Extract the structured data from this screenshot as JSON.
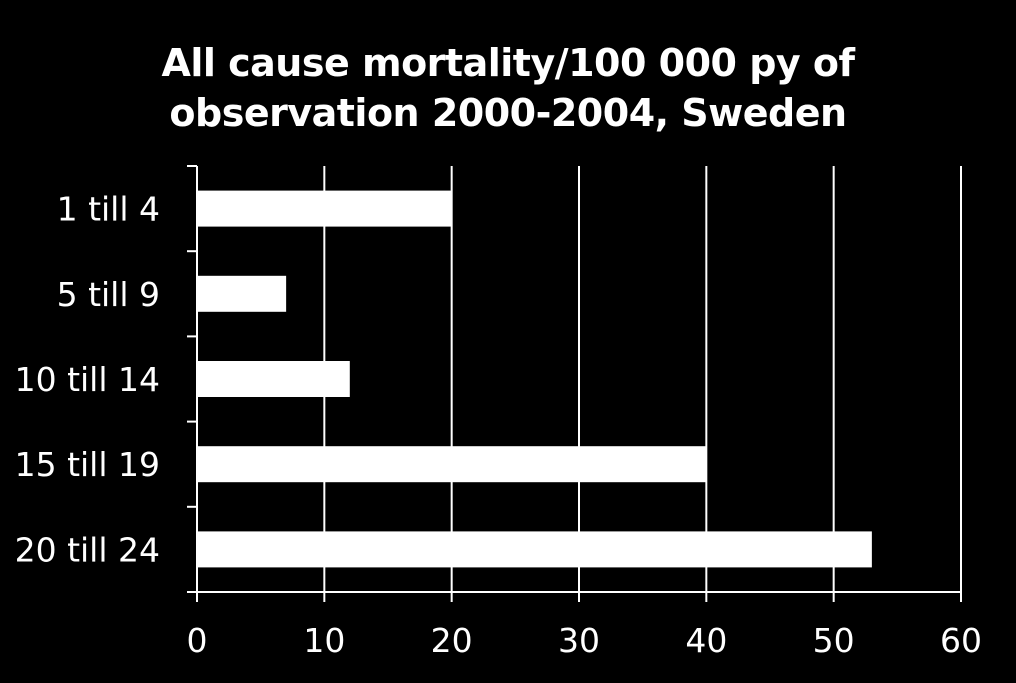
{
  "chart_data": {
    "type": "bar",
    "orientation": "horizontal",
    "title_lines": [
      "All cause mortality/100 000 py of",
      "observation 2000-2004, Sweden"
    ],
    "categories": [
      "1 till 4",
      "5 till 9",
      "10 till 14",
      "15 till 19",
      "20 till 24"
    ],
    "values": [
      20,
      7,
      12,
      40,
      53
    ],
    "xlim": [
      0,
      60
    ],
    "xticks": [
      0,
      10,
      20,
      30,
      40,
      50,
      60
    ],
    "grid": "vertical",
    "legend": "none",
    "colors": {
      "background": "#000000",
      "bar": "#ffffff",
      "text": "#ffffff",
      "grid": "#ffffff"
    }
  }
}
